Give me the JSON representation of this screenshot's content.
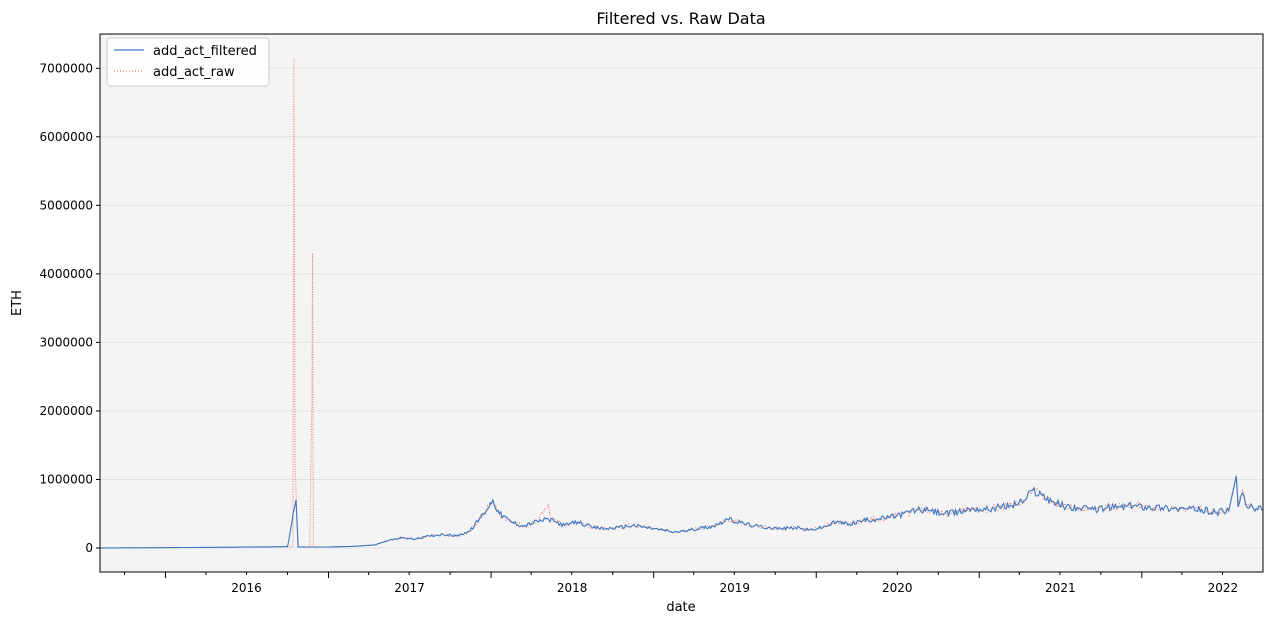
{
  "chart_data": {
    "type": "line",
    "title": "Filtered vs. Raw Data",
    "xlabel": "date",
    "ylabel": "ETH",
    "xlim": [
      "2015-08-07",
      "2022-09-30"
    ],
    "ylim": [
      -350000,
      7500000
    ],
    "yticks": [
      0,
      1000000,
      2000000,
      3000000,
      4000000,
      5000000,
      6000000,
      7000000
    ],
    "ytick_labels": [
      "0",
      "1000000",
      "2000000",
      "3000000",
      "4000000",
      "5000000",
      "6000000",
      "7000000"
    ],
    "xtick_labels": [
      "2016",
      "2017",
      "2018",
      "2019",
      "2020",
      "2021",
      "2022"
    ],
    "grid": "horizontal",
    "legend_position": "top-left",
    "background": "#f4f4f4",
    "series": [
      {
        "name": "add_act_filtered",
        "color": "#3b78c4",
        "style": "solid",
        "points": [
          [
            "2015-08-07",
            1000
          ],
          [
            "2015-12-01",
            4000
          ],
          [
            "2016-03-01",
            8000
          ],
          [
            "2016-06-01",
            12000
          ],
          [
            "2016-09-01",
            18000
          ],
          [
            "2016-10-01",
            20000
          ],
          [
            "2016-10-20",
            700000
          ],
          [
            "2016-10-25",
            15000
          ],
          [
            "2016-12-01",
            15000
          ],
          [
            "2017-01-01",
            15000
          ],
          [
            "2017-03-01",
            25000
          ],
          [
            "2017-04-15",
            45000
          ],
          [
            "2017-05-15",
            110000
          ],
          [
            "2017-06-15",
            150000
          ],
          [
            "2017-07-15",
            130000
          ],
          [
            "2017-08-15",
            175000
          ],
          [
            "2017-09-15",
            200000
          ],
          [
            "2017-10-15",
            175000
          ],
          [
            "2017-11-15",
            250000
          ],
          [
            "2017-12-15",
            500000
          ],
          [
            "2018-01-05",
            700000
          ],
          [
            "2018-01-20",
            500000
          ],
          [
            "2018-02-15",
            380000
          ],
          [
            "2018-03-15",
            320000
          ],
          [
            "2018-04-15",
            390000
          ],
          [
            "2018-05-10",
            420000
          ],
          [
            "2018-06-15",
            330000
          ],
          [
            "2018-07-15",
            380000
          ],
          [
            "2018-08-15",
            300000
          ],
          [
            "2018-09-15",
            280000
          ],
          [
            "2018-10-15",
            300000
          ],
          [
            "2018-11-15",
            330000
          ],
          [
            "2018-12-15",
            300000
          ],
          [
            "2019-01-15",
            270000
          ],
          [
            "2019-02-15",
            230000
          ],
          [
            "2019-03-15",
            250000
          ],
          [
            "2019-04-15",
            290000
          ],
          [
            "2019-05-15",
            320000
          ],
          [
            "2019-06-15",
            420000
          ],
          [
            "2019-07-15",
            370000
          ],
          [
            "2019-08-15",
            320000
          ],
          [
            "2019-09-15",
            300000
          ],
          [
            "2019-10-15",
            280000
          ],
          [
            "2019-11-15",
            300000
          ],
          [
            "2019-12-15",
            260000
          ],
          [
            "2020-01-15",
            300000
          ],
          [
            "2020-02-15",
            380000
          ],
          [
            "2020-03-15",
            350000
          ],
          [
            "2020-04-15",
            400000
          ],
          [
            "2020-05-15",
            420000
          ],
          [
            "2020-06-15",
            450000
          ],
          [
            "2020-07-15",
            500000
          ],
          [
            "2020-08-15",
            560000
          ],
          [
            "2020-09-15",
            540000
          ],
          [
            "2020-10-15",
            500000
          ],
          [
            "2020-11-15",
            520000
          ],
          [
            "2020-12-15",
            580000
          ],
          [
            "2021-01-15",
            560000
          ],
          [
            "2021-02-15",
            600000
          ],
          [
            "2021-03-15",
            620000
          ],
          [
            "2021-04-15",
            700000
          ],
          [
            "2021-05-01",
            850000
          ],
          [
            "2021-05-20",
            780000
          ],
          [
            "2021-06-15",
            680000
          ],
          [
            "2021-07-15",
            600000
          ],
          [
            "2021-08-15",
            580000
          ],
          [
            "2021-09-15",
            560000
          ],
          [
            "2021-10-15",
            590000
          ],
          [
            "2021-11-15",
            600000
          ],
          [
            "2021-12-15",
            620000
          ],
          [
            "2022-01-15",
            600000
          ],
          [
            "2022-02-15",
            590000
          ],
          [
            "2022-03-15",
            580000
          ],
          [
            "2022-04-15",
            570000
          ],
          [
            "2022-05-15",
            560000
          ],
          [
            "2022-06-15",
            520000
          ],
          [
            "2022-07-15",
            540000
          ],
          [
            "2022-08-01",
            1050000
          ],
          [
            "2022-08-05",
            600000
          ],
          [
            "2022-08-15",
            800000
          ],
          [
            "2022-08-25",
            600000
          ],
          [
            "2022-09-15",
            580000
          ],
          [
            "2022-09-30",
            560000
          ]
        ]
      },
      {
        "name": "add_act_raw",
        "color": "#f28070",
        "style": "dotted",
        "points": [
          [
            "2015-08-07",
            1000
          ],
          [
            "2015-12-01",
            4000
          ],
          [
            "2016-03-01",
            8000
          ],
          [
            "2016-06-01",
            12000
          ],
          [
            "2016-09-01",
            18000
          ],
          [
            "2016-10-13",
            20000
          ],
          [
            "2016-10-15",
            7150000
          ],
          [
            "2016-10-18",
            1200000
          ],
          [
            "2016-10-21",
            700000
          ],
          [
            "2016-10-24",
            15000
          ],
          [
            "2016-11-20",
            15000
          ],
          [
            "2016-11-23",
            1500000
          ],
          [
            "2016-11-25",
            2200000
          ],
          [
            "2016-11-26",
            4300000
          ],
          [
            "2016-11-28",
            15000
          ],
          [
            "2017-01-01",
            15000
          ],
          [
            "2017-03-01",
            25000
          ],
          [
            "2017-04-15",
            45000
          ],
          [
            "2017-05-15",
            110000
          ],
          [
            "2017-06-15",
            150000
          ],
          [
            "2017-07-15",
            130000
          ],
          [
            "2017-08-15",
            175000
          ],
          [
            "2017-09-15",
            200000
          ],
          [
            "2017-10-15",
            175000
          ],
          [
            "2017-11-15",
            250000
          ],
          [
            "2017-12-15",
            500000
          ],
          [
            "2018-01-05",
            700000
          ],
          [
            "2018-01-20",
            500000
          ],
          [
            "2018-02-15",
            380000
          ],
          [
            "2018-03-15",
            320000
          ],
          [
            "2018-04-15",
            390000
          ],
          [
            "2018-05-10",
            640000
          ],
          [
            "2018-05-15",
            420000
          ],
          [
            "2018-06-15",
            330000
          ],
          [
            "2018-07-15",
            380000
          ],
          [
            "2018-08-15",
            300000
          ],
          [
            "2018-09-15",
            280000
          ],
          [
            "2018-10-15",
            300000
          ],
          [
            "2018-11-15",
            330000
          ],
          [
            "2018-12-15",
            300000
          ],
          [
            "2019-01-15",
            270000
          ],
          [
            "2019-02-15",
            230000
          ],
          [
            "2019-03-15",
            250000
          ],
          [
            "2019-04-15",
            290000
          ],
          [
            "2019-05-15",
            320000
          ],
          [
            "2019-06-15",
            420000
          ],
          [
            "2019-07-15",
            370000
          ],
          [
            "2019-08-15",
            320000
          ],
          [
            "2019-09-15",
            300000
          ],
          [
            "2019-10-15",
            280000
          ],
          [
            "2019-11-15",
            300000
          ],
          [
            "2019-12-15",
            260000
          ],
          [
            "2020-01-15",
            300000
          ],
          [
            "2020-02-15",
            380000
          ],
          [
            "2020-03-15",
            350000
          ],
          [
            "2020-04-15",
            400000
          ],
          [
            "2020-05-15",
            420000
          ],
          [
            "2020-06-15",
            450000
          ],
          [
            "2020-07-15",
            500000
          ],
          [
            "2020-08-15",
            560000
          ],
          [
            "2020-09-15",
            540000
          ],
          [
            "2020-10-15",
            500000
          ],
          [
            "2020-11-15",
            520000
          ],
          [
            "2020-12-15",
            580000
          ],
          [
            "2021-01-15",
            560000
          ],
          [
            "2021-02-15",
            600000
          ],
          [
            "2021-03-15",
            620000
          ],
          [
            "2021-04-15",
            700000
          ],
          [
            "2021-05-01",
            850000
          ],
          [
            "2021-05-20",
            780000
          ],
          [
            "2021-06-15",
            680000
          ],
          [
            "2021-07-15",
            600000
          ],
          [
            "2021-08-15",
            580000
          ],
          [
            "2021-09-15",
            560000
          ],
          [
            "2021-10-15",
            590000
          ],
          [
            "2021-11-15",
            600000
          ],
          [
            "2021-12-15",
            620000
          ],
          [
            "2022-01-15",
            600000
          ],
          [
            "2022-02-15",
            590000
          ],
          [
            "2022-03-15",
            580000
          ],
          [
            "2022-04-15",
            570000
          ],
          [
            "2022-05-15",
            560000
          ],
          [
            "2022-06-15",
            520000
          ],
          [
            "2022-07-15",
            540000
          ],
          [
            "2022-08-01",
            1080000
          ],
          [
            "2022-08-05",
            600000
          ],
          [
            "2022-08-15",
            860000
          ],
          [
            "2022-08-25",
            600000
          ],
          [
            "2022-09-15",
            580000
          ],
          [
            "2022-09-30",
            560000
          ]
        ]
      }
    ]
  }
}
